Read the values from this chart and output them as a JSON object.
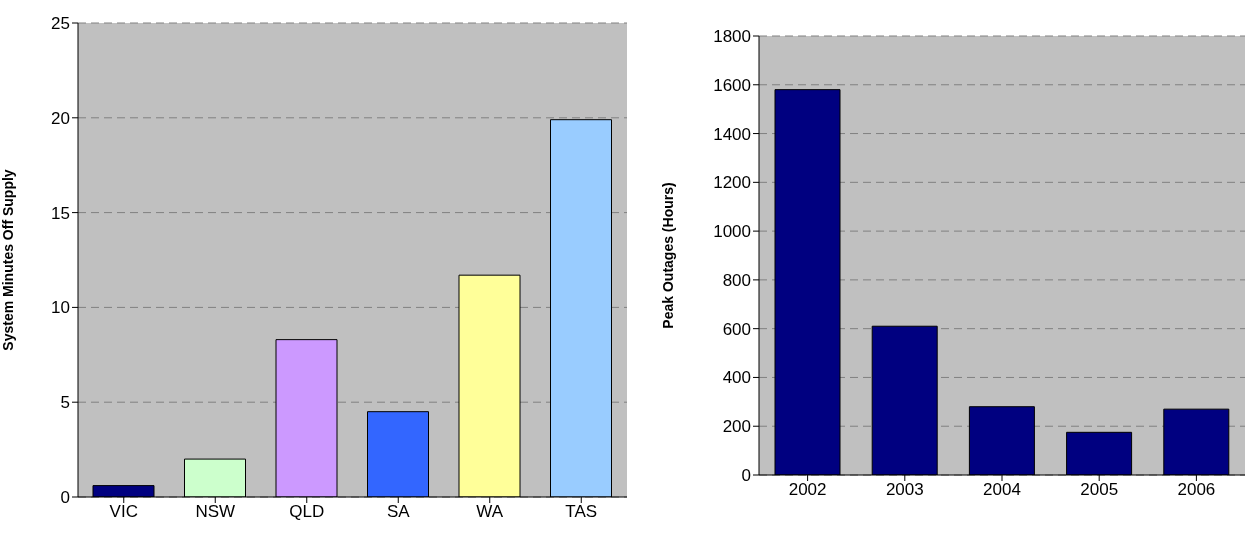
{
  "chart_data": [
    {
      "type": "bar",
      "ylabel": "System Minutes Off Supply",
      "categories": [
        "VIC",
        "NSW",
        "QLD",
        "SA",
        "WA",
        "TAS"
      ],
      "values": [
        0.6,
        2.0,
        8.3,
        4.5,
        11.7,
        19.9
      ],
      "colors": [
        "#000080",
        "#ccffcc",
        "#cc99ff",
        "#3366ff",
        "#ffff99",
        "#99ccff"
      ],
      "ylim": [
        0,
        25
      ],
      "yticks": [
        0,
        5,
        10,
        15,
        20,
        25
      ],
      "grid": "y"
    },
    {
      "type": "bar",
      "ylabel": "Peak Outages (Hours)",
      "categories": [
        "2002",
        "2003",
        "2004",
        "2005",
        "2006"
      ],
      "values": [
        1580,
        610,
        280,
        175,
        270
      ],
      "color": "#000080",
      "ylim": [
        0,
        1800
      ],
      "yticks": [
        0,
        200,
        400,
        600,
        800,
        1000,
        1200,
        1400,
        1600,
        1800
      ],
      "grid": "y"
    }
  ]
}
